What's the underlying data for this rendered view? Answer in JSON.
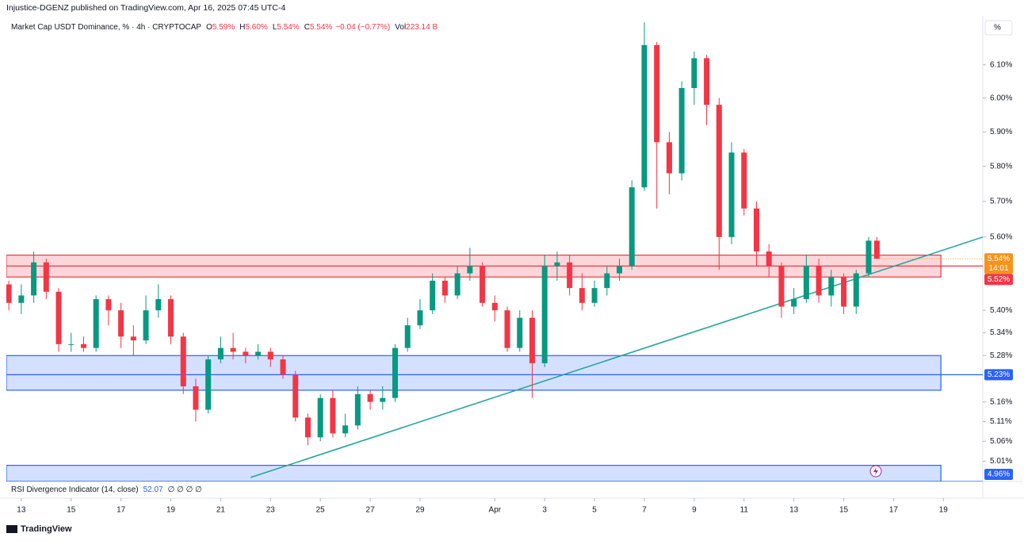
{
  "header": {
    "publisher": "Injustice-DGENZ published on TradingView.com, Apr 16, 2025 07:45 UTC-4",
    "scale_button": "%",
    "brand": "TradingView"
  },
  "chart_data": {
    "type": "candlestick",
    "title": "Market Cap USDT Dominance, % · 4h · CRYPTOCAP",
    "ohlc_legend": [
      {
        "label": "O",
        "value": "5.59%"
      },
      {
        "label": "H",
        "value": "5.60%"
      },
      {
        "label": "L",
        "value": "5.54%"
      },
      {
        "label": "C",
        "value": "5.54%"
      },
      {
        "label": "",
        "value": "−0.04 (−0.77%)"
      },
      {
        "label": "Vol",
        "value": "223.14 B"
      }
    ],
    "indicator": {
      "name": "RSI Divergence Indicator (14, close)",
      "value": "52.07",
      "flags": "∅ ∅ ∅ ∅"
    },
    "log": true,
    "grid": false,
    "up_color": "#089981",
    "down_color": "#f23645",
    "x": [
      12.5,
      13,
      13.5,
      14,
      14.5,
      15,
      15.5,
      16,
      16.5,
      17,
      17.5,
      18,
      18.5,
      19,
      19.5,
      20,
      20.5,
      21,
      21.5,
      22,
      22.5,
      23,
      23.5,
      24,
      24.5,
      25,
      25.5,
      26,
      26.5,
      27,
      27.5,
      28,
      28.5,
      29,
      29.5,
      30,
      30.5,
      31,
      31.5,
      32,
      32.5,
      33,
      33.5,
      34,
      34.5,
      35,
      35.5,
      36,
      36.5,
      37,
      37.5,
      38,
      38.5,
      39,
      39.5,
      40,
      40.5,
      41,
      41.5,
      42,
      42.5,
      43,
      43.5,
      44,
      44.5,
      45,
      45.5,
      46,
      46.5,
      47,
      47.33
    ],
    "open": [
      5.47,
      5.42,
      5.44,
      5.53,
      5.45,
      5.31,
      5.31,
      5.3,
      5.43,
      5.4,
      5.33,
      5.32,
      5.4,
      5.43,
      5.33,
      5.2,
      5.14,
      5.27,
      5.3,
      5.29,
      5.28,
      5.29,
      5.27,
      5.23,
      5.12,
      5.07,
      5.17,
      5.08,
      5.1,
      5.18,
      5.16,
      5.17,
      5.3,
      5.36,
      5.4,
      5.48,
      5.44,
      5.5,
      5.52,
      5.42,
      5.4,
      5.3,
      5.38,
      5.26,
      5.52,
      5.53,
      5.46,
      5.42,
      5.46,
      5.5,
      5.52,
      5.74,
      6.16,
      5.87,
      5.78,
      6.03,
      6.12,
      5.98,
      5.6,
      5.84,
      5.68,
      5.56,
      5.52,
      5.41,
      5.43,
      5.52,
      5.44,
      5.49,
      5.41,
      5.5,
      5.59
    ],
    "high": [
      5.48,
      5.47,
      5.56,
      5.54,
      5.46,
      5.34,
      5.33,
      5.44,
      5.44,
      5.42,
      5.36,
      5.44,
      5.47,
      5.44,
      5.34,
      5.22,
      5.28,
      5.33,
      5.34,
      5.3,
      5.31,
      5.3,
      5.28,
      5.24,
      5.13,
      5.18,
      5.19,
      5.13,
      5.2,
      5.19,
      5.2,
      5.31,
      5.38,
      5.43,
      5.5,
      5.49,
      5.52,
      5.57,
      5.53,
      5.44,
      5.41,
      5.4,
      5.4,
      5.55,
      5.56,
      5.55,
      5.5,
      5.48,
      5.52,
      5.54,
      5.76,
      6.23,
      6.17,
      5.9,
      6.05,
      6.14,
      6.13,
      6.0,
      5.87,
      5.85,
      5.7,
      5.58,
      5.53,
      5.46,
      5.55,
      5.54,
      5.51,
      5.5,
      5.51,
      5.6,
      5.6
    ],
    "low": [
      5.4,
      5.39,
      5.42,
      5.43,
      5.29,
      5.29,
      5.29,
      5.29,
      5.36,
      5.3,
      5.28,
      5.31,
      5.38,
      5.31,
      5.18,
      5.11,
      5.13,
      5.26,
      5.27,
      5.26,
      5.27,
      5.25,
      5.22,
      5.11,
      5.05,
      5.06,
      5.07,
      5.07,
      5.09,
      5.14,
      5.14,
      5.16,
      5.29,
      5.35,
      5.39,
      5.42,
      5.43,
      5.48,
      5.41,
      5.37,
      5.29,
      5.29,
      5.17,
      5.25,
      5.48,
      5.44,
      5.4,
      5.41,
      5.44,
      5.48,
      5.51,
      5.73,
      5.68,
      5.72,
      5.76,
      5.98,
      5.92,
      5.51,
      5.58,
      5.66,
      5.52,
      5.49,
      5.38,
      5.39,
      5.42,
      5.42,
      5.41,
      5.39,
      5.39,
      5.49,
      5.54
    ],
    "close": [
      5.42,
      5.44,
      5.53,
      5.45,
      5.31,
      5.31,
      5.3,
      5.43,
      5.4,
      5.33,
      5.32,
      5.4,
      5.43,
      5.33,
      5.2,
      5.14,
      5.27,
      5.3,
      5.29,
      5.28,
      5.29,
      5.27,
      5.23,
      5.12,
      5.07,
      5.17,
      5.08,
      5.1,
      5.18,
      5.16,
      5.17,
      5.3,
      5.36,
      5.4,
      5.48,
      5.44,
      5.5,
      5.52,
      5.42,
      5.4,
      5.3,
      5.38,
      5.26,
      5.52,
      5.53,
      5.46,
      5.42,
      5.46,
      5.5,
      5.52,
      5.74,
      6.16,
      5.87,
      5.78,
      6.03,
      6.12,
      5.98,
      5.6,
      5.84,
      5.68,
      5.56,
      5.52,
      5.41,
      5.43,
      5.52,
      5.44,
      5.49,
      5.41,
      5.5,
      5.59,
      5.54
    ],
    "xlim": [
      12.4,
      51.58
    ],
    "xticks": [
      13,
      15,
      17,
      19,
      21,
      23,
      25,
      27,
      29,
      {
        "value": 32,
        "label": "Apr"
      },
      {
        "value": 34,
        "label": "3"
      },
      {
        "value": 36,
        "label": "5"
      },
      {
        "value": 38,
        "label": "7"
      },
      {
        "value": 40,
        "label": "9"
      },
      {
        "value": 42,
        "label": "11"
      },
      {
        "value": 44,
        "label": "13"
      },
      {
        "value": 46,
        "label": "15"
      },
      {
        "value": 48,
        "label": "17"
      },
      {
        "value": 50,
        "label": "19"
      }
    ],
    "ylim": [
      4.96,
      6.25
    ],
    "yticks": [
      {
        "value": 6.1,
        "label": "6.10%"
      },
      {
        "value": 6.0,
        "label": "6.00%"
      },
      {
        "value": 5.9,
        "label": "5.90%"
      },
      {
        "value": 5.8,
        "label": "5.80%"
      },
      {
        "value": 5.7,
        "label": "5.70%"
      },
      {
        "value": 5.6,
        "label": "5.60%"
      },
      {
        "value": 5.4,
        "label": "5.40%"
      },
      {
        "value": 5.34,
        "label": "5.34%"
      },
      {
        "value": 5.28,
        "label": "5.28%"
      },
      {
        "value": 5.16,
        "label": "5.16%"
      },
      {
        "value": 5.11,
        "label": "5.11%"
      },
      {
        "value": 5.06,
        "label": "5.06%"
      },
      {
        "value": 5.01,
        "label": "5.01%"
      }
    ],
    "zones": [
      {
        "x": [
          12.4,
          49.9
        ],
        "top": 5.55,
        "bottom": 5.49,
        "color": "#f23645"
      },
      {
        "x": [
          12.4,
          49.9
        ],
        "top": 5.28,
        "bottom": 5.19,
        "color": "#2962ff"
      },
      {
        "x": [
          12.4,
          49.9
        ],
        "top": 5.0,
        "bottom": 4.96,
        "color": "#2962ff"
      }
    ],
    "trendline": {
      "x": [
        22.2,
        51.58
      ],
      "y": [
        4.97,
        5.6
      ],
      "color": "#26a69a"
    },
    "price_labels": [
      {
        "value": 5.54,
        "label": "5.54%",
        "color": "#f7931a",
        "countdown": "14:01"
      },
      {
        "value": 5.52,
        "label": "5.52%",
        "color": "#f23645"
      },
      {
        "value": 5.23,
        "label": "5.23%",
        "color": "#2962ff"
      },
      {
        "value": 4.96,
        "label": "4.96%",
        "color": "#2962ff"
      }
    ]
  }
}
